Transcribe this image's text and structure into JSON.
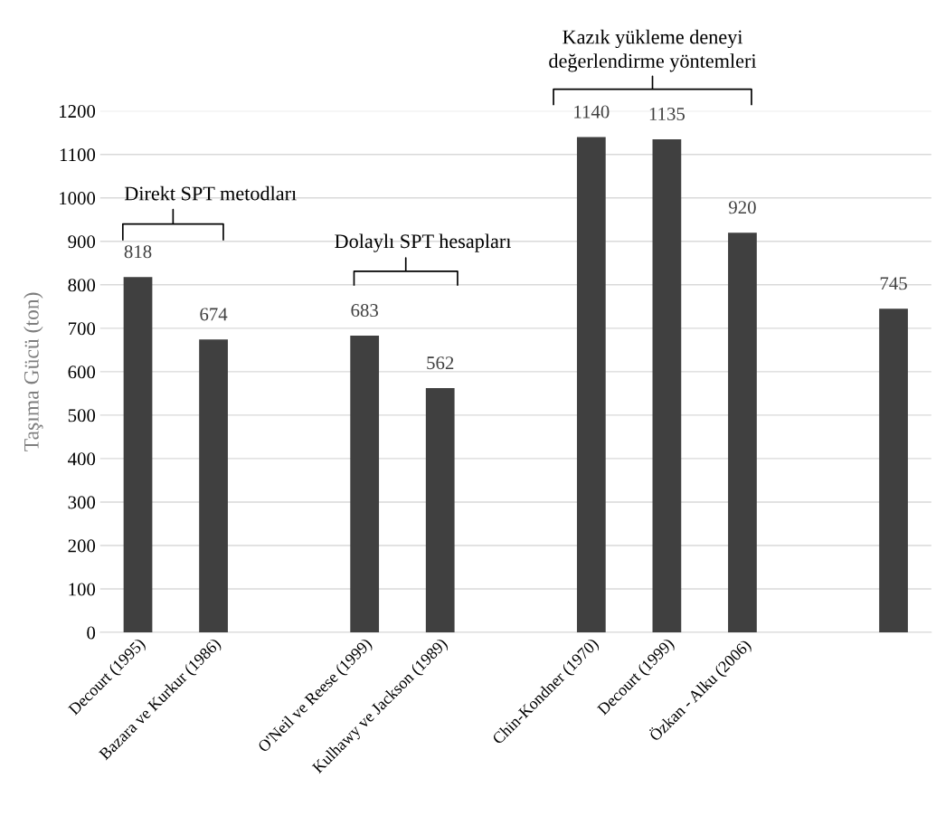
{
  "chart_data": {
    "type": "bar",
    "ylabel": "Taşıma Gücü (ton)",
    "categories": [
      "Decourt (1995)",
      "Bazara ve Kurkur (1986)",
      null,
      "O'Neil ve Reese (1999)",
      "Kulhawy ve Jackson (1989)",
      null,
      "Chin-Kondner (1970)",
      "Decourt (1999)",
      "Özkan - Alku (2006)",
      null,
      null
    ],
    "values": [
      818,
      674,
      null,
      683,
      562,
      null,
      1140,
      1135,
      920,
      null,
      745
    ],
    "color": "#404040",
    "data_labels": true,
    "ylim": [
      0,
      1200
    ],
    "yticks": [
      0,
      100,
      200,
      300,
      400,
      500,
      600,
      700,
      800,
      900,
      1000,
      1100,
      1200
    ],
    "grid": "y",
    "annotations": [
      "Direkt SPT metodları",
      "Dolaylı SPT hesapları",
      "Kazık yükleme deneyi\ndeğerlendirme yöntemleri"
    ]
  }
}
